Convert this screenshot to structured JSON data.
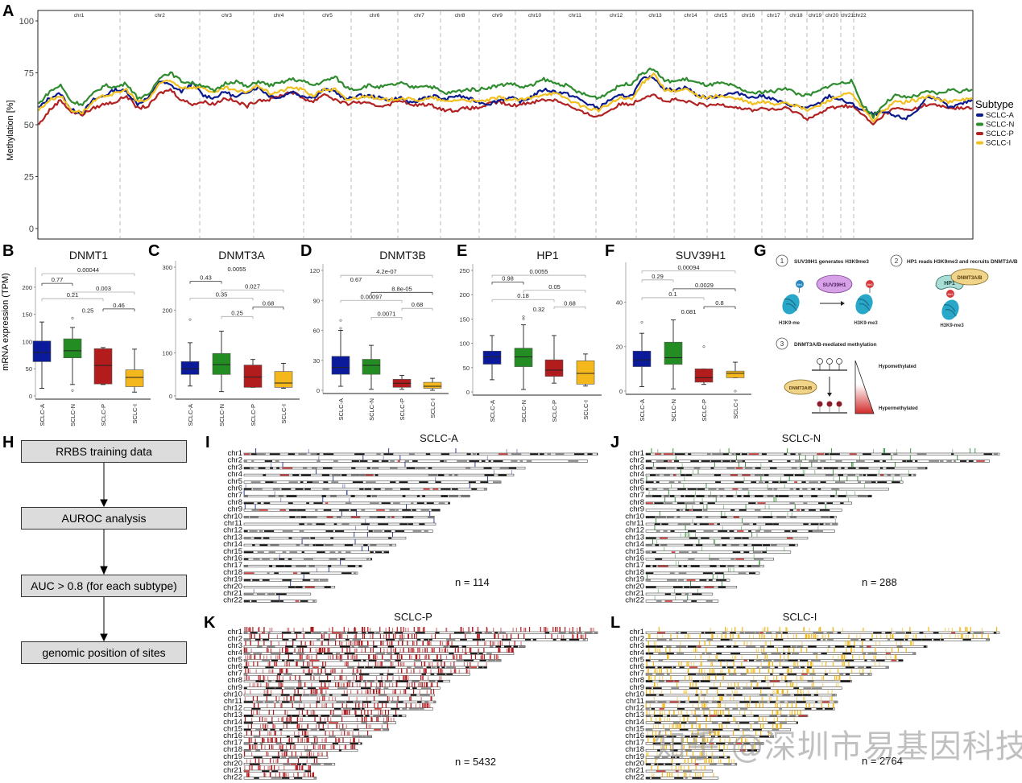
{
  "panels": {
    "A": "A",
    "B": "B",
    "C": "C",
    "D": "D",
    "E": "E",
    "F": "F",
    "G": "G",
    "H": "H",
    "I": "I",
    "J": "J",
    "K": "K",
    "L": "L"
  },
  "colors": {
    "SCLC-A": "#0b1a8c",
    "SCLC-N": "#2e8b2e",
    "SCLC-P": "#b22222",
    "SCLC-I": "#f2c01e",
    "box_A": "#0a1a9a",
    "box_N": "#238c23",
    "box_P": "#b21c1c",
    "box_I": "#f5b81c",
    "karyo_A": "#1c2a8c",
    "karyo_N": "#2c8a2c",
    "karyo_P": "#b0191e",
    "karyo_I": "#f3b615"
  },
  "chart_data": [
    {
      "id": "A",
      "type": "line",
      "title": "",
      "xlabel": "",
      "ylabel": "Methylation [%]",
      "ylim": [
        0,
        100
      ],
      "yticks": [
        "0",
        "25",
        "50",
        "75",
        "100"
      ],
      "legend_title": "Subtype",
      "legend_position": "right",
      "chromosomes": [
        "chr1",
        "chr2",
        "chr3",
        "chr4",
        "chr5",
        "chr6",
        "chr7",
        "chr8",
        "chr9",
        "chr10",
        "chr11",
        "chr12",
        "chr13",
        "chr14",
        "chr15",
        "chr16",
        "chr17",
        "chr18",
        "chr19",
        "chr20",
        "chr21",
        "chr22"
      ],
      "series": [
        {
          "name": "SCLC-A",
          "values": [
            58,
            63,
            65,
            57,
            56,
            62,
            64,
            67,
            66,
            60,
            63,
            71,
            69,
            66,
            70,
            64,
            63,
            66,
            63,
            66,
            68,
            64,
            63,
            66,
            64,
            63,
            67,
            66,
            62,
            64,
            64,
            63,
            62,
            63,
            60,
            63,
            64,
            62,
            64,
            63,
            61,
            60,
            62,
            63,
            61,
            64,
            67,
            66,
            65,
            63,
            60,
            58,
            62,
            64,
            64,
            72,
            73,
            67,
            67,
            68,
            64,
            63,
            64,
            65,
            65,
            63,
            64,
            62,
            60,
            59,
            58,
            60,
            64,
            62,
            60,
            57,
            55,
            56,
            54,
            53,
            57,
            64,
            62,
            58,
            60,
            62
          ]
        },
        {
          "name": "SCLC-N",
          "values": [
            60,
            66,
            69,
            61,
            60,
            65,
            69,
            68,
            70,
            63,
            64,
            73,
            75,
            71,
            70,
            69,
            66,
            70,
            71,
            68,
            71,
            69,
            70,
            72,
            71,
            69,
            71,
            73,
            68,
            67,
            69,
            68,
            69,
            70,
            68,
            69,
            68,
            65,
            66,
            67,
            67,
            68,
            69,
            70,
            68,
            69,
            72,
            70,
            69,
            66,
            64,
            63,
            66,
            69,
            70,
            75,
            77,
            71,
            71,
            72,
            70,
            69,
            70,
            69,
            67,
            65,
            66,
            66,
            68,
            65,
            64,
            66,
            69,
            70,
            71,
            60,
            54,
            60,
            64,
            63,
            64,
            66,
            65,
            67,
            66,
            67
          ]
        },
        {
          "name": "SCLC-P",
          "values": [
            50,
            57,
            62,
            56,
            55,
            58,
            60,
            61,
            64,
            58,
            59,
            65,
            67,
            62,
            60,
            61,
            60,
            63,
            61,
            59,
            62,
            62,
            64,
            66,
            63,
            61,
            65,
            62,
            60,
            61,
            60,
            59,
            60,
            62,
            59,
            60,
            59,
            57,
            57,
            58,
            58,
            60,
            61,
            59,
            60,
            61,
            62,
            62,
            60,
            57,
            55,
            54,
            57,
            60,
            60,
            63,
            65,
            61,
            62,
            61,
            60,
            59,
            60,
            59,
            58,
            57,
            58,
            57,
            58,
            56,
            53,
            55,
            58,
            59,
            59,
            55,
            50,
            55,
            58,
            57,
            58,
            60,
            59,
            58,
            58,
            58
          ]
        },
        {
          "name": "SCLC-I",
          "values": [
            57,
            62,
            64,
            57,
            56,
            61,
            64,
            65,
            67,
            61,
            62,
            70,
            71,
            68,
            68,
            68,
            65,
            68,
            66,
            66,
            69,
            65,
            66,
            68,
            67,
            64,
            67,
            67,
            62,
            63,
            64,
            62,
            62,
            63,
            62,
            62,
            63,
            61,
            62,
            62,
            61,
            62,
            63,
            62,
            62,
            63,
            65,
            65,
            63,
            60,
            58,
            57,
            60,
            63,
            62,
            70,
            75,
            67,
            66,
            67,
            64,
            63,
            64,
            63,
            62,
            60,
            61,
            60,
            61,
            59,
            57,
            59,
            62,
            64,
            65,
            58,
            52,
            57,
            61,
            61,
            62,
            64,
            62,
            61,
            62,
            63
          ]
        }
      ]
    },
    {
      "id": "B",
      "type": "box",
      "title": "DNMT1",
      "ylabel": "mRNA expression (TPM)",
      "ylim": [
        0,
        225
      ],
      "yticks": [
        "0",
        "50",
        "100",
        "150",
        "200"
      ],
      "categories": [
        "SCLC-A",
        "SCLC-N",
        "SCLC-P",
        "SCLC-I"
      ],
      "boxes": [
        {
          "min": 14,
          "q1": 63,
          "median": 80,
          "q3": 101,
          "max": 136,
          "outliers": []
        },
        {
          "min": 21,
          "q1": 70,
          "median": 83,
          "q3": 105,
          "max": 126,
          "outliers": [
            10,
            143
          ]
        },
        {
          "min": 21,
          "q1": 22,
          "median": 56,
          "q3": 87,
          "max": 89,
          "outliers": []
        },
        {
          "min": 7,
          "q1": 17,
          "median": 34,
          "q3": 48,
          "max": 86,
          "outliers": []
        }
      ],
      "comparisons": [
        {
          "label": "0.00044",
          "from": 0,
          "to": 3,
          "y": 225,
          "dark": false
        },
        {
          "label": "0.77",
          "from": 0,
          "to": 1,
          "y": 207,
          "dark": true
        },
        {
          "label": "0.003",
          "from": 1,
          "to": 3,
          "y": 191,
          "dark": false
        },
        {
          "label": "0.21",
          "from": 0,
          "to": 2,
          "y": 179,
          "dark": false
        },
        {
          "label": "0.46",
          "from": 2,
          "to": 3,
          "y": 160,
          "dark": true
        },
        {
          "label": "0.25",
          "from": 1,
          "to": 2,
          "y": 150,
          "dark": false,
          "text_only": true
        }
      ]
    },
    {
      "id": "C",
      "type": "box",
      "title": "DNMT3A",
      "ylabel": "",
      "ylim": [
        0,
        300
      ],
      "yticks": [
        "0",
        "100",
        "200",
        "300"
      ],
      "categories": [
        "SCLC-A",
        "SCLC-N",
        "SCLC-P",
        "SCLC-I"
      ],
      "boxes": [
        {
          "min": 23,
          "q1": 50,
          "median": 63,
          "q3": 80,
          "max": 124,
          "outliers": [
            178
          ]
        },
        {
          "min": 10,
          "q1": 50,
          "median": 73,
          "q3": 99,
          "max": 151,
          "outliers": []
        },
        {
          "min": 20,
          "q1": 20,
          "median": 44,
          "q3": 72,
          "max": 85,
          "outliers": []
        },
        {
          "min": 18,
          "q1": 20,
          "median": 30,
          "q3": 57,
          "max": 76,
          "outliers": []
        }
      ],
      "comparisons": [
        {
          "label": "0.0055",
          "from": 0,
          "to": 3,
          "y": 287,
          "dark": false,
          "text_only": true
        },
        {
          "label": "0.43",
          "from": 0,
          "to": 1,
          "y": 267,
          "dark": true
        },
        {
          "label": "0.027",
          "from": 1,
          "to": 3,
          "y": 247,
          "dark": false
        },
        {
          "label": "0.35",
          "from": 0,
          "to": 2,
          "y": 228,
          "dark": false
        },
        {
          "label": "0.68",
          "from": 2,
          "to": 3,
          "y": 207,
          "dark": true
        },
        {
          "label": "0.25",
          "from": 1,
          "to": 2,
          "y": 185,
          "dark": false
        }
      ]
    },
    {
      "id": "D",
      "type": "box",
      "title": "DNMT3B",
      "ylabel": "",
      "ylim": [
        0,
        120
      ],
      "yticks": [
        "0",
        "30",
        "60",
        "90",
        "120"
      ],
      "categories": [
        "SCLC-A",
        "SCLC-N",
        "SCLC-P",
        "SCLC-I"
      ],
      "boxes": [
        {
          "min": 4,
          "q1": 16,
          "median": 23,
          "q3": 34,
          "max": 60,
          "outliers": [
            62,
            70
          ]
        },
        {
          "min": 1,
          "q1": 16,
          "median": 25,
          "q3": 31,
          "max": 45,
          "outliers": []
        },
        {
          "min": 1,
          "q1": 3,
          "median": 7,
          "q3": 11,
          "max": 15,
          "outliers": []
        },
        {
          "min": 0,
          "q1": 2,
          "median": 4,
          "q3": 8,
          "max": 12,
          "outliers": []
        }
      ],
      "comparisons": [
        {
          "label": "4.2e-07",
          "from": 0,
          "to": 3,
          "y": 115,
          "dark": false
        },
        {
          "label": "0.67",
          "from": 0,
          "to": 1,
          "y": 107,
          "dark": false,
          "text_only": true
        },
        {
          "label": "8.8e-05",
          "from": 1,
          "to": 3,
          "y": 98,
          "dark": true
        },
        {
          "label": "0.00097",
          "from": 0,
          "to": 2,
          "y": 90,
          "dark": false
        },
        {
          "label": "0.68",
          "from": 2,
          "to": 3,
          "y": 82,
          "dark": false
        },
        {
          "label": "0.0071",
          "from": 1,
          "to": 2,
          "y": 73,
          "dark": false
        }
      ]
    },
    {
      "id": "E",
      "type": "box",
      "title": "HP1",
      "ylabel": "",
      "ylim": [
        0,
        250
      ],
      "yticks": [
        "0",
        "50",
        "100",
        "150",
        "200",
        "250"
      ],
      "categories": [
        "SCLC-A",
        "SCLC-N",
        "SCLC-P",
        "SCLC-I"
      ],
      "boxes": [
        {
          "min": 25,
          "q1": 57,
          "median": 72,
          "q3": 84,
          "max": 116,
          "outliers": []
        },
        {
          "min": 5,
          "q1": 52,
          "median": 72,
          "q3": 90,
          "max": 138,
          "outliers": [
            150,
            155
          ]
        },
        {
          "min": 18,
          "q1": 32,
          "median": 45,
          "q3": 66,
          "max": 116,
          "outliers": []
        },
        {
          "min": 12,
          "q1": 16,
          "median": 38,
          "q3": 64,
          "max": 78,
          "outliers": []
        }
      ],
      "comparisons": [
        {
          "label": "0.0055",
          "from": 0,
          "to": 3,
          "y": 240,
          "dark": false
        },
        {
          "label": "0.98",
          "from": 0,
          "to": 1,
          "y": 226,
          "dark": true
        },
        {
          "label": "0.05",
          "from": 1,
          "to": 3,
          "y": 209,
          "dark": false
        },
        {
          "label": "0.18",
          "from": 0,
          "to": 2,
          "y": 190,
          "dark": false
        },
        {
          "label": "0.68",
          "from": 2,
          "to": 3,
          "y": 175,
          "dark": false
        },
        {
          "label": "0.32",
          "from": 1,
          "to": 2,
          "y": 162,
          "dark": false,
          "text_only": true
        }
      ]
    },
    {
      "id": "F",
      "type": "box",
      "title": "SUV39H1",
      "ylabel": "",
      "ylim": [
        0,
        55
      ],
      "yticks": [
        "0",
        "20",
        "40"
      ],
      "categories": [
        "SCLC-A",
        "SCLC-N",
        "SCLC-P",
        "SCLC-I"
      ],
      "boxes": [
        {
          "min": 2,
          "q1": 11,
          "median": 14,
          "q3": 18,
          "max": 26,
          "outliers": [
            31
          ]
        },
        {
          "min": 1,
          "q1": 12,
          "median": 15,
          "q3": 22,
          "max": 32,
          "outliers": []
        },
        {
          "min": 3,
          "q1": 4,
          "median": 6,
          "q3": 10,
          "max": 10,
          "outliers": [
            20
          ]
        },
        {
          "min": 6,
          "q1": 6,
          "median": 8,
          "q3": 9,
          "max": 13,
          "outliers": [
            0
          ]
        }
      ],
      "comparisons": [
        {
          "label": "0.00094",
          "from": 0,
          "to": 3,
          "y": 54,
          "dark": false
        },
        {
          "label": "0.29",
          "from": 0,
          "to": 1,
          "y": 50,
          "dark": false
        },
        {
          "label": "0.0029",
          "from": 1,
          "to": 3,
          "y": 46,
          "dark": true
        },
        {
          "label": "0.1",
          "from": 0,
          "to": 2,
          "y": 42,
          "dark": false
        },
        {
          "label": "0.8",
          "from": 2,
          "to": 3,
          "y": 38,
          "dark": true
        },
        {
          "label": "0.081",
          "from": 1,
          "to": 2,
          "y": 34,
          "dark": false,
          "text_only": true
        }
      ]
    }
  ],
  "diagram_G": {
    "step1_num": "1",
    "step1_title": "SUV39H1 generates H3K9me3",
    "step1_enzyme": "SUV39H1",
    "step1_left_mark": "Me1",
    "step1_right_mark": "Me3",
    "step1_left_label": "H3K9-me",
    "step1_right_label": "H3K9-me3",
    "step2_num": "2",
    "step2_title": "HP1 reads H3K9me3 and recruits DNMT3A/B",
    "step2_hp1": "HP1",
    "step2_dnmt": "DNMT3A/B",
    "step2_mark": "Me3",
    "step2_label": "H3K9-me3",
    "step3_num": "3",
    "step3_title": "DNMT3A/B-mediated methylation",
    "step3_dnmt": "DNMT3A/B",
    "hypo": "Hypomethylated",
    "hyper": "Hypermethylated"
  },
  "flowchart_H": {
    "steps": [
      "RRBS training data",
      "AUROC analysis",
      "AUC > 0.8 (for each subtype)",
      "genomic position of sites"
    ]
  },
  "karyograms": {
    "chromosomes": [
      "chr1",
      "chr2",
      "chr3",
      "chr4",
      "chr5",
      "chr6",
      "chr7",
      "chr8",
      "chr9",
      "chr10",
      "chr11",
      "chr12",
      "chr13",
      "chr14",
      "chr15",
      "chr16",
      "chr17",
      "chr18",
      "chr19",
      "chr20",
      "chr21",
      "chr22"
    ],
    "chrom_lengths_mb": [
      249,
      242,
      198,
      190,
      181,
      171,
      159,
      145,
      138,
      134,
      135,
      133,
      114,
      107,
      102,
      90,
      83,
      80,
      59,
      64,
      47,
      51
    ],
    "panels": [
      {
        "id": "I",
        "title": "SCLC-A",
        "n_label": "n = 114",
        "n": 114
      },
      {
        "id": "J",
        "title": "SCLC-N",
        "n_label": "n = 288",
        "n": 288
      },
      {
        "id": "K",
        "title": "SCLC-P",
        "n_label": "n = 5432",
        "n": 5432
      },
      {
        "id": "L",
        "title": "SCLC-I",
        "n_label": "n = 2764",
        "n": 2764
      }
    ]
  },
  "watermark": "知乎 @深圳市易基因科技"
}
